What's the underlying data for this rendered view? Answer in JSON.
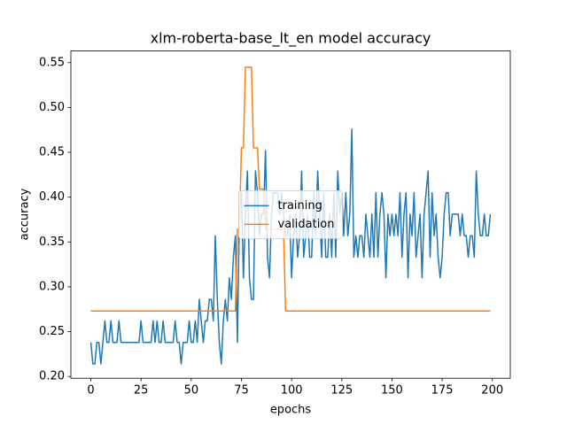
{
  "chart_data": {
    "type": "line",
    "title": "xlm-roberta-base_lt_en model accuracy",
    "x_label": "epochs",
    "y_label": "accuracy",
    "x": [
      0,
      1,
      2,
      3,
      4,
      5,
      6,
      7,
      8,
      9,
      10,
      11,
      12,
      13,
      14,
      15,
      16,
      17,
      18,
      19,
      20,
      21,
      22,
      23,
      24,
      25,
      26,
      27,
      28,
      29,
      30,
      31,
      32,
      33,
      34,
      35,
      36,
      37,
      38,
      39,
      40,
      41,
      42,
      43,
      44,
      45,
      46,
      47,
      48,
      49,
      50,
      51,
      52,
      53,
      54,
      55,
      56,
      57,
      58,
      59,
      60,
      61,
      62,
      63,
      64,
      65,
      66,
      67,
      68,
      69,
      70,
      71,
      72,
      73,
      74,
      75,
      76,
      77,
      78,
      79,
      80,
      81,
      82,
      83,
      84,
      85,
      86,
      87,
      88,
      89,
      90,
      91,
      92,
      93,
      94,
      95,
      96,
      97,
      98,
      99,
      100,
      101,
      102,
      103,
      104,
      105,
      106,
      107,
      108,
      109,
      110,
      111,
      112,
      113,
      114,
      115,
      116,
      117,
      118,
      119,
      120,
      121,
      122,
      123,
      124,
      125,
      126,
      127,
      128,
      129,
      130,
      131,
      132,
      133,
      134,
      135,
      136,
      137,
      138,
      139,
      140,
      141,
      142,
      143,
      144,
      145,
      146,
      147,
      148,
      149,
      150,
      151,
      152,
      153,
      154,
      155,
      156,
      157,
      158,
      159,
      160,
      161,
      162,
      163,
      164,
      165,
      166,
      167,
      168,
      169,
      170,
      171,
      172,
      173,
      174,
      175,
      176,
      177,
      178,
      179,
      180,
      181,
      182,
      183,
      184,
      185,
      186,
      187,
      188,
      189,
      190,
      191,
      192,
      193,
      194,
      195,
      196,
      197,
      198,
      199
    ],
    "series": [
      {
        "name": "training",
        "color": "#1f77b4",
        "values": [
          0.238,
          0.214,
          0.214,
          0.238,
          0.238,
          0.214,
          0.238,
          0.262,
          0.238,
          0.238,
          0.262,
          0.238,
          0.238,
          0.238,
          0.262,
          0.238,
          0.238,
          0.238,
          0.238,
          0.238,
          0.238,
          0.238,
          0.238,
          0.238,
          0.238,
          0.262,
          0.238,
          0.238,
          0.238,
          0.238,
          0.238,
          0.262,
          0.238,
          0.262,
          0.238,
          0.238,
          0.262,
          0.238,
          0.238,
          0.238,
          0.238,
          0.238,
          0.262,
          0.238,
          0.238,
          0.214,
          0.238,
          0.238,
          0.238,
          0.262,
          0.238,
          0.238,
          0.262,
          0.238,
          0.286,
          0.262,
          0.238,
          0.262,
          0.262,
          0.286,
          0.286,
          0.262,
          0.357,
          0.286,
          0.238,
          0.214,
          0.262,
          0.286,
          0.262,
          0.31,
          0.286,
          0.333,
          0.357,
          0.238,
          0.381,
          0.405,
          0.31,
          0.381,
          0.429,
          0.31,
          0.286,
          0.286,
          0.429,
          0.405,
          0.357,
          0.381,
          0.381,
          0.452,
          0.333,
          0.31,
          0.381,
          0.405,
          0.405,
          0.405,
          0.381,
          0.405,
          0.381,
          0.357,
          0.357,
          0.381,
          0.31,
          0.357,
          0.381,
          0.333,
          0.357,
          0.429,
          0.333,
          0.357,
          0.381,
          0.333,
          0.333,
          0.405,
          0.357,
          0.429,
          0.381,
          0.333,
          0.405,
          0.333,
          0.333,
          0.381,
          0.333,
          0.405,
          0.333,
          0.429,
          0.381,
          0.405,
          0.357,
          0.405,
          0.357,
          0.381,
          0.476,
          0.333,
          0.357,
          0.333,
          0.357,
          0.357,
          0.333,
          0.381,
          0.357,
          0.333,
          0.381,
          0.333,
          0.405,
          0.333,
          0.381,
          0.405,
          0.381,
          0.31,
          0.381,
          0.357,
          0.381,
          0.357,
          0.381,
          0.357,
          0.405,
          0.333,
          0.381,
          0.405,
          0.31,
          0.381,
          0.357,
          0.405,
          0.333,
          0.357,
          0.381,
          0.31,
          0.381,
          0.405,
          0.429,
          0.333,
          0.405,
          0.357,
          0.381,
          0.333,
          0.31,
          0.333,
          0.381,
          0.405,
          0.405,
          0.357,
          0.381,
          0.381,
          0.381,
          0.381,
          0.357,
          0.381,
          0.357,
          0.357,
          0.333,
          0.357,
          0.357,
          0.333,
          0.429,
          0.381,
          0.357,
          0.357,
          0.381,
          0.357,
          0.357,
          0.381
        ]
      },
      {
        "name": "validation",
        "color": "#ff7f0e",
        "values": [
          0.273,
          0.273,
          0.273,
          0.273,
          0.273,
          0.273,
          0.273,
          0.273,
          0.273,
          0.273,
          0.273,
          0.273,
          0.273,
          0.273,
          0.273,
          0.273,
          0.273,
          0.273,
          0.273,
          0.273,
          0.273,
          0.273,
          0.273,
          0.273,
          0.273,
          0.273,
          0.273,
          0.273,
          0.273,
          0.273,
          0.273,
          0.273,
          0.273,
          0.273,
          0.273,
          0.273,
          0.273,
          0.273,
          0.273,
          0.273,
          0.273,
          0.273,
          0.273,
          0.273,
          0.273,
          0.273,
          0.273,
          0.273,
          0.273,
          0.273,
          0.273,
          0.273,
          0.273,
          0.273,
          0.273,
          0.273,
          0.273,
          0.273,
          0.273,
          0.273,
          0.273,
          0.273,
          0.273,
          0.273,
          0.273,
          0.273,
          0.273,
          0.273,
          0.273,
          0.273,
          0.273,
          0.273,
          0.273,
          0.364,
          0.364,
          0.455,
          0.455,
          0.545,
          0.545,
          0.545,
          0.545,
          0.455,
          0.455,
          0.455,
          0.409,
          0.409,
          0.409,
          0.364,
          0.364,
          0.364,
          0.364,
          0.364,
          0.364,
          0.364,
          0.364,
          0.364,
          0.364,
          0.273,
          0.273,
          0.273,
          0.273,
          0.273,
          0.273,
          0.273,
          0.273,
          0.273,
          0.273,
          0.273,
          0.273,
          0.273,
          0.273,
          0.273,
          0.273,
          0.273,
          0.273,
          0.273,
          0.273,
          0.273,
          0.273,
          0.273,
          0.273,
          0.273,
          0.273,
          0.273,
          0.273,
          0.273,
          0.273,
          0.273,
          0.273,
          0.273,
          0.273,
          0.273,
          0.273,
          0.273,
          0.273,
          0.273,
          0.273,
          0.273,
          0.273,
          0.273,
          0.273,
          0.273,
          0.273,
          0.273,
          0.273,
          0.273,
          0.273,
          0.273,
          0.273,
          0.273,
          0.273,
          0.273,
          0.273,
          0.273,
          0.273,
          0.273,
          0.273,
          0.273,
          0.273,
          0.273,
          0.273,
          0.273,
          0.273,
          0.273,
          0.273,
          0.273,
          0.273,
          0.273,
          0.273,
          0.273,
          0.273,
          0.273,
          0.273,
          0.273,
          0.273,
          0.273,
          0.273,
          0.273,
          0.273,
          0.273,
          0.273,
          0.273,
          0.273,
          0.273,
          0.273,
          0.273,
          0.273,
          0.273,
          0.273,
          0.273,
          0.273,
          0.273,
          0.273,
          0.273,
          0.273,
          0.273,
          0.273,
          0.273,
          0.273,
          0.273
        ]
      }
    ],
    "xlim": [
      -9.95,
      208.95
    ],
    "xticks": [
      0,
      25,
      50,
      75,
      100,
      125,
      150,
      175,
      200
    ],
    "ylim": [
      0.198,
      0.563
    ],
    "yticks": [
      {
        "value": 0.2,
        "label": "0.20"
      },
      0.25,
      {
        "value": 0.3,
        "label": "0.30"
      },
      0.35,
      {
        "value": 0.4,
        "label": "0.40"
      },
      0.45,
      {
        "value": 0.5,
        "label": "0.50"
      },
      0.55
    ],
    "legend": "center"
  }
}
